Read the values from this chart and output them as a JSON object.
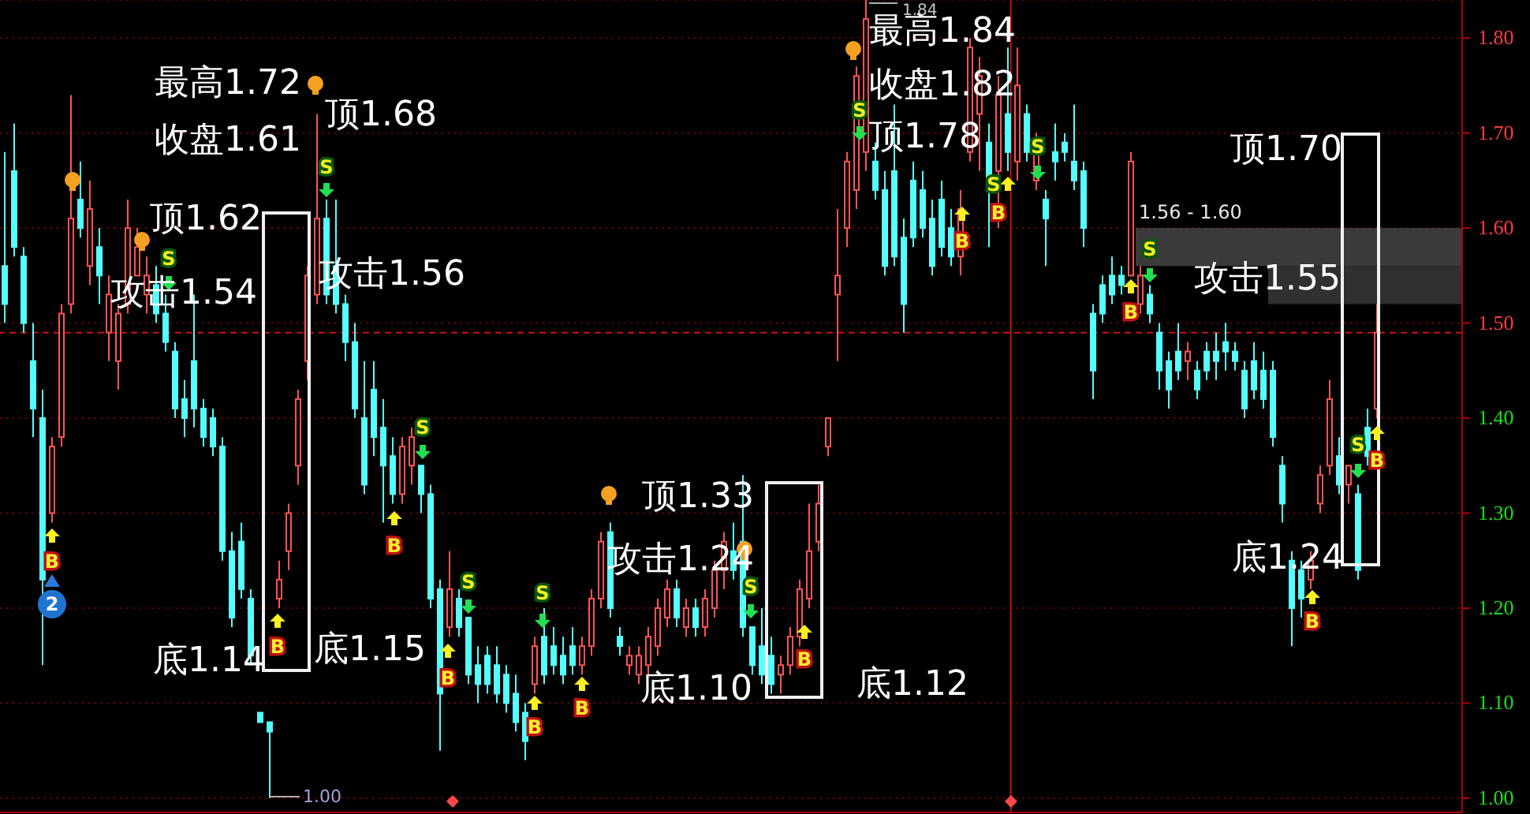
{
  "chart_data": {
    "type": "candlestick",
    "categories": [
      null,
      null,
      null,
      null,
      null,
      null,
      null,
      null,
      null,
      null,
      null,
      null,
      null,
      null,
      null,
      null,
      null,
      null,
      null,
      null,
      null,
      null,
      null,
      null,
      null,
      null,
      null,
      null,
      null,
      null,
      null,
      null,
      null,
      null,
      null,
      null,
      null,
      null,
      null,
      null,
      null,
      null,
      null,
      null,
      null,
      null,
      null,
      null,
      null,
      null,
      null,
      null,
      null,
      null,
      null,
      null,
      null,
      null,
      null,
      null,
      null,
      null,
      null,
      null,
      null,
      null,
      null,
      null,
      null,
      null,
      null,
      null,
      null,
      null,
      null,
      null,
      null,
      null,
      null,
      null,
      null,
      null,
      null,
      null,
      null,
      null,
      null,
      null,
      null,
      null,
      null,
      null,
      null,
      null,
      null,
      null,
      null,
      null,
      null,
      null,
      null,
      null,
      null,
      null,
      null,
      null,
      null,
      null,
      null,
      null,
      null,
      null,
      null,
      null,
      null,
      null,
      null,
      null,
      null,
      null,
      null,
      null,
      null,
      null,
      null,
      null,
      null,
      null,
      null,
      null,
      null,
      null,
      null,
      null,
      null,
      null,
      null,
      null,
      null,
      null,
      null,
      null,
      null,
      null,
      null,
      null
    ],
    "ohlc": [
      [
        1.56,
        1.68,
        1.5,
        1.52
      ],
      [
        1.66,
        1.71,
        1.57,
        1.58
      ],
      [
        1.57,
        1.58,
        1.49,
        1.5
      ],
      [
        1.46,
        1.5,
        1.38,
        1.41
      ],
      [
        1.4,
        1.43,
        1.14,
        1.23
      ],
      [
        1.3,
        1.38,
        1.29,
        1.37
      ],
      [
        1.38,
        1.52,
        1.37,
        1.51
      ],
      [
        1.52,
        1.74,
        1.51,
        1.61
      ],
      [
        1.63,
        1.67,
        1.59,
        1.6
      ],
      [
        1.56,
        1.65,
        1.54,
        1.62
      ],
      [
        1.58,
        1.6,
        1.52,
        1.55
      ],
      [
        1.49,
        1.55,
        1.46,
        1.53
      ],
      [
        1.46,
        1.52,
        1.43,
        1.51
      ],
      [
        1.52,
        1.63,
        1.51,
        1.6
      ],
      [
        1.55,
        1.6,
        1.55,
        1.58
      ],
      [
        1.53,
        1.57,
        1.51,
        1.55
      ],
      [
        1.54,
        1.56,
        1.5,
        1.51
      ],
      [
        1.51,
        1.53,
        1.47,
        1.48
      ],
      [
        1.47,
        1.48,
        1.4,
        1.41
      ],
      [
        1.42,
        1.44,
        1.38,
        1.4
      ],
      [
        1.46,
        1.53,
        1.39,
        1.41
      ],
      [
        1.41,
        1.42,
        1.37,
        1.38
      ],
      [
        1.4,
        1.41,
        1.36,
        1.37
      ],
      [
        1.37,
        1.38,
        1.25,
        1.26
      ],
      [
        1.26,
        1.28,
        1.18,
        1.19
      ],
      [
        1.27,
        1.29,
        1.21,
        1.22
      ],
      [
        1.21,
        1.22,
        1.14,
        1.15
      ],
      [
        1.09,
        1.09,
        1.08,
        1.08
      ],
      [
        1.08,
        1.08,
        1.0,
        1.07
      ],
      [
        1.21,
        1.25,
        1.2,
        1.23
      ],
      [
        1.26,
        1.31,
        1.24,
        1.3
      ],
      [
        1.35,
        1.43,
        1.33,
        1.42
      ],
      [
        1.46,
        1.56,
        1.44,
        1.55
      ],
      [
        1.53,
        1.72,
        1.52,
        1.61
      ],
      [
        1.61,
        1.63,
        1.52,
        1.53
      ],
      [
        1.56,
        1.63,
        1.51,
        1.52
      ],
      [
        1.52,
        1.53,
        1.46,
        1.48
      ],
      [
        1.48,
        1.5,
        1.4,
        1.41
      ],
      [
        1.4,
        1.46,
        1.32,
        1.33
      ],
      [
        1.43,
        1.46,
        1.36,
        1.38
      ],
      [
        1.39,
        1.42,
        1.29,
        1.35
      ],
      [
        1.36,
        1.38,
        1.31,
        1.32
      ],
      [
        1.32,
        1.38,
        1.31,
        1.37
      ],
      [
        1.35,
        1.39,
        1.33,
        1.38
      ],
      [
        1.35,
        1.35,
        1.3,
        1.32
      ],
      [
        1.32,
        1.33,
        1.2,
        1.21
      ],
      [
        1.22,
        1.23,
        1.05,
        1.11
      ],
      [
        1.18,
        1.26,
        1.17,
        1.22
      ],
      [
        1.21,
        1.22,
        1.17,
        1.18
      ],
      [
        1.19,
        1.19,
        1.12,
        1.13
      ],
      [
        1.14,
        1.16,
        1.1,
        1.12
      ],
      [
        1.15,
        1.16,
        1.11,
        1.12
      ],
      [
        1.14,
        1.16,
        1.1,
        1.11
      ],
      [
        1.13,
        1.14,
        1.09,
        1.1
      ],
      [
        1.11,
        1.13,
        1.07,
        1.08
      ],
      [
        1.09,
        1.1,
        1.04,
        1.06
      ],
      [
        1.12,
        1.17,
        1.11,
        1.16
      ],
      [
        1.17,
        1.2,
        1.12,
        1.13
      ],
      [
        1.16,
        1.18,
        1.13,
        1.14
      ],
      [
        1.15,
        1.17,
        1.12,
        1.13
      ],
      [
        1.16,
        1.18,
        1.13,
        1.14
      ],
      [
        1.14,
        1.17,
        1.13,
        1.16
      ],
      [
        1.16,
        1.22,
        1.15,
        1.21
      ],
      [
        1.21,
        1.28,
        1.2,
        1.27
      ],
      [
        1.28,
        1.29,
        1.19,
        1.2
      ],
      [
        1.17,
        1.18,
        1.15,
        1.16
      ],
      [
        1.14,
        1.16,
        1.13,
        1.15
      ],
      [
        1.13,
        1.16,
        1.12,
        1.15
      ],
      [
        1.14,
        1.18,
        1.13,
        1.17
      ],
      [
        1.16,
        1.21,
        1.15,
        1.2
      ],
      [
        1.19,
        1.23,
        1.18,
        1.22
      ],
      [
        1.22,
        1.23,
        1.18,
        1.19
      ],
      [
        1.18,
        1.21,
        1.17,
        1.2
      ],
      [
        1.2,
        1.21,
        1.17,
        1.18
      ],
      [
        1.18,
        1.22,
        1.17,
        1.21
      ],
      [
        1.2,
        1.25,
        1.19,
        1.24
      ],
      [
        1.24,
        1.28,
        1.22,
        1.27
      ],
      [
        1.26,
        1.29,
        1.23,
        1.24
      ],
      [
        1.27,
        1.34,
        1.17,
        1.18
      ],
      [
        1.18,
        1.18,
        1.13,
        1.14
      ],
      [
        1.16,
        1.2,
        1.12,
        1.13
      ],
      [
        1.15,
        1.17,
        1.11,
        1.12
      ],
      [
        1.13,
        1.15,
        1.11,
        1.14
      ],
      [
        1.14,
        1.18,
        1.13,
        1.17
      ],
      [
        1.17,
        1.23,
        1.16,
        1.22
      ],
      [
        1.21,
        1.31,
        1.2,
        1.26
      ],
      [
        1.27,
        1.33,
        1.26,
        1.31
      ],
      [
        1.37,
        1.4,
        1.36,
        1.4
      ],
      [
        1.53,
        1.62,
        1.46,
        1.55
      ],
      [
        1.6,
        1.68,
        1.58,
        1.67
      ],
      [
        1.64,
        1.77,
        1.62,
        1.76
      ],
      [
        1.68,
        1.84,
        1.66,
        1.82
      ],
      [
        1.67,
        1.69,
        1.63,
        1.64
      ],
      [
        1.64,
        1.66,
        1.55,
        1.56
      ],
      [
        1.66,
        1.73,
        1.56,
        1.57
      ],
      [
        1.59,
        1.61,
        1.49,
        1.52
      ],
      [
        1.65,
        1.67,
        1.58,
        1.59
      ],
      [
        1.64,
        1.66,
        1.59,
        1.6
      ],
      [
        1.61,
        1.63,
        1.55,
        1.56
      ],
      [
        1.63,
        1.65,
        1.57,
        1.58
      ],
      [
        1.6,
        1.62,
        1.56,
        1.57
      ],
      [
        1.57,
        1.64,
        1.55,
        1.62
      ],
      [
        1.68,
        1.8,
        1.67,
        1.79
      ],
      [
        1.72,
        1.78,
        1.66,
        1.76
      ],
      [
        1.69,
        1.71,
        1.58,
        1.64
      ],
      [
        1.66,
        1.76,
        1.6,
        1.74
      ],
      [
        1.72,
        1.79,
        1.66,
        1.68
      ],
      [
        1.67,
        1.79,
        1.65,
        1.75
      ],
      [
        1.72,
        1.73,
        1.67,
        1.68
      ],
      [
        1.65,
        1.7,
        1.64,
        1.69
      ],
      [
        1.63,
        1.64,
        1.56,
        1.61
      ],
      [
        1.68,
        1.71,
        1.65,
        1.67
      ],
      [
        1.69,
        1.7,
        1.67,
        1.68
      ],
      [
        1.67,
        1.73,
        1.64,
        1.65
      ],
      [
        1.66,
        1.67,
        1.58,
        1.6
      ],
      [
        1.51,
        1.52,
        1.42,
        1.45
      ],
      [
        1.54,
        1.55,
        1.5,
        1.51
      ],
      [
        1.55,
        1.57,
        1.52,
        1.53
      ],
      [
        1.55,
        1.56,
        1.53,
        1.54
      ],
      [
        1.55,
        1.68,
        1.55,
        1.67
      ],
      [
        1.52,
        1.56,
        1.51,
        1.55
      ],
      [
        1.53,
        1.54,
        1.5,
        1.51
      ],
      [
        1.49,
        1.5,
        1.43,
        1.45
      ],
      [
        1.46,
        1.47,
        1.41,
        1.43
      ],
      [
        1.47,
        1.5,
        1.44,
        1.45
      ],
      [
        1.46,
        1.48,
        1.44,
        1.47
      ],
      [
        1.45,
        1.46,
        1.42,
        1.43
      ],
      [
        1.47,
        1.48,
        1.44,
        1.45
      ],
      [
        1.47,
        1.49,
        1.44,
        1.46
      ],
      [
        1.48,
        1.5,
        1.45,
        1.47
      ],
      [
        1.47,
        1.48,
        1.45,
        1.46
      ],
      [
        1.45,
        1.46,
        1.4,
        1.41
      ],
      [
        1.46,
        1.48,
        1.42,
        1.43
      ],
      [
        1.45,
        1.47,
        1.41,
        1.42
      ],
      [
        1.45,
        1.46,
        1.37,
        1.38
      ],
      [
        1.35,
        1.36,
        1.29,
        1.31
      ],
      [
        1.25,
        1.26,
        1.16,
        1.2
      ],
      [
        1.24,
        1.25,
        1.19,
        1.21
      ],
      [
        1.23,
        1.26,
        1.22,
        1.25
      ],
      [
        1.31,
        1.35,
        1.3,
        1.34
      ],
      [
        1.35,
        1.44,
        1.34,
        1.42
      ],
      [
        1.36,
        1.38,
        1.32,
        1.33
      ],
      [
        1.33,
        1.35,
        1.31,
        1.35
      ],
      [
        1.32,
        1.33,
        1.23,
        1.24
      ],
      [
        1.39,
        1.41,
        1.35,
        1.36
      ],
      [
        1.41,
        1.52,
        1.4,
        1.49
      ]
    ],
    "colors": [
      "#54ffff",
      "#54ffff",
      "#54ffff",
      "#54ffff",
      "#54ffff",
      "#ff5454",
      "#ff5454",
      "#ff5454",
      "#54ffff",
      "#ff5454",
      "#54ffff",
      "#ff5454",
      "#ff5454",
      "#ff5454",
      "#ff5454",
      "#ff5454",
      "#54ffff",
      "#54ffff",
      "#54ffff",
      "#54ffff",
      "#54ffff",
      "#54ffff",
      "#54ffff",
      "#54ffff",
      "#54ffff",
      "#54ffff",
      "#54ffff",
      "#54ffff",
      "#54ffff",
      "#ff5454",
      "#ff5454",
      "#ff5454",
      "#ff5454",
      "#ff5454",
      "#54ffff",
      "#54ffff",
      "#54ffff",
      "#54ffff",
      "#54ffff",
      "#54ffff",
      "#54ffff",
      "#54ffff",
      "#ff5454",
      "#ff5454",
      "#54ffff",
      "#54ffff",
      "#54ffff",
      "#ff5454",
      "#54ffff",
      "#54ffff",
      "#54ffff",
      "#54ffff",
      "#54ffff",
      "#54ffff",
      "#54ffff",
      "#54ffff",
      "#ff5454",
      "#54ffff",
      "#54ffff",
      "#54ffff",
      "#54ffff",
      "#ff5454",
      "#ff5454",
      "#ff5454",
      "#54ffff",
      "#54ffff",
      "#ff5454",
      "#ff5454",
      "#ff5454",
      "#ff5454",
      "#ff5454",
      "#54ffff",
      "#ff5454",
      "#54ffff",
      "#ff5454",
      "#ff5454",
      "#ff5454",
      "#54ffff",
      "#54ffff",
      "#54ffff",
      "#54ffff",
      "#54ffff",
      "#ff5454",
      "#ff5454",
      "#ff5454",
      "#ff5454",
      "#ff5454",
      "#ff5454",
      "#ff5454",
      "#ff5454",
      "#ff5454",
      "#ff5454",
      "#54ffff",
      "#54ffff",
      "#54ffff",
      "#54ffff",
      "#54ffff",
      "#54ffff",
      "#54ffff",
      "#54ffff",
      "#54ffff",
      "#ff5454",
      "#ff5454",
      "#ff5454",
      "#54ffff",
      "#ff5454",
      "#54ffff",
      "#ff5454",
      "#54ffff",
      "#ff5454",
      "#54ffff",
      "#54ffff",
      "#54ffff",
      "#54ffff",
      "#54ffff",
      "#54ffff",
      "#54ffff",
      "#54ffff",
      "#54ffff",
      "#ff5454",
      "#ff5454",
      "#54ffff",
      "#54ffff",
      "#54ffff",
      "#54ffff",
      "#ff5454",
      "#54ffff",
      "#54ffff",
      "#54ffff",
      "#54ffff",
      "#54ffff",
      "#54ffff",
      "#54ffff",
      "#54ffff",
      "#54ffff",
      "#54ffff",
      "#54ffff",
      "#54ffff",
      "#ff5454",
      "#ff5454",
      "#ff5454",
      "#54ffff",
      "#ff5454",
      "#54ffff",
      "#54ffff",
      "#ff5454"
    ],
    "ylim": [
      0.985,
      1.84
    ],
    "yticks": [
      {
        "value": 1.0,
        "label": "1.00"
      },
      {
        "value": 1.1,
        "label": "1.10"
      },
      {
        "value": 1.2,
        "label": "1.20"
      },
      {
        "value": 1.3,
        "label": "1.30"
      },
      {
        "value": 1.4,
        "label": "1.40"
      },
      {
        "value": 1.5,
        "label": "1.50"
      },
      {
        "value": 1.6,
        "label": "1.60"
      },
      {
        "value": 1.7,
        "label": "1.70"
      },
      {
        "value": 1.8,
        "label": "1.80"
      }
    ],
    "grid": "y",
    "tick_labels": "y",
    "ref_lines": [
      {
        "axis": "y",
        "value": 1.49,
        "color": "#d01010",
        "line_style": "dashed"
      }
    ],
    "bands": [
      {
        "axis": "y",
        "from": 1.56,
        "to": 1.6,
        "label": "1.56 - 1.60",
        "color": "#3a3a3a"
      },
      {
        "axis": "y",
        "from": 1.52,
        "to": 1.56,
        "color": "#303030"
      }
    ],
    "annotations": [
      "最高1.72",
      "收盘1.61",
      "顶1.62",
      "攻击1.54",
      "顶1.68",
      "攻击1.56",
      "底1.14",
      "底1.15",
      "顶1.33",
      "攻击1.24",
      "底1.10",
      "底1.12",
      "最高1.84",
      "收盘1.82",
      "顶1.78",
      "顶1.70",
      "攻击1.55",
      "底1.24",
      "1.84",
      "1.00",
      "2",
      "S",
      "S",
      "S",
      "S",
      "S",
      "S",
      "S",
      "S",
      "S",
      "S",
      "S",
      "B",
      "B",
      "B",
      "B",
      "B",
      "B",
      "B",
      "B",
      "B",
      "B",
      "B",
      "B"
    ]
  }
}
